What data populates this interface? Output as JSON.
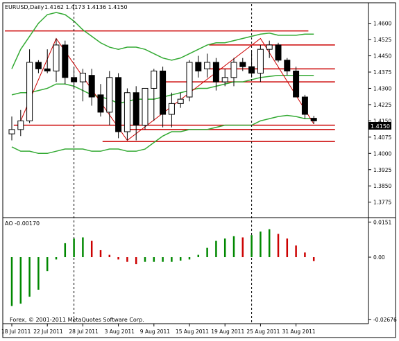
{
  "chart_data": {
    "type": "candlestick",
    "symbol_label": "EURUSD,Daily",
    "ohlc_header": "1.4162 1.4173 1.4136 1.4150",
    "last_price_label": "1.4150",
    "price_axis": {
      "range": [
        1.371,
        1.465
      ],
      "ticks": [
        "1.4600",
        "1.4525",
        "1.4450",
        "1.4375",
        "1.4300",
        "1.4225",
        "1.4150",
        "1.4075",
        "1.4000",
        "1.3925",
        "1.3850",
        "1.3775"
      ]
    },
    "dates": [
      "18 Jul 2011",
      "19 Jul 2011",
      "20 Jul 2011",
      "21 Jul 2011",
      "22 Jul 2011",
      "25 Jul 2011",
      "26 Jul 2011",
      "27 Jul 2011",
      "28 Jul 2011",
      "29 Jul 2011",
      "1 Aug 2011",
      "2 Aug 2011",
      "3 Aug 2011",
      "4 Aug 2011",
      "5 Aug 2011",
      "8 Aug 2011",
      "9 Aug 2011",
      "10 Aug 2011",
      "11 Aug 2011",
      "12 Aug 2011",
      "15 Aug 2011",
      "16 Aug 2011",
      "17 Aug 2011",
      "18 Aug 2011",
      "19 Aug 2011",
      "22 Aug 2011",
      "23 Aug 2011",
      "24 Aug 2011",
      "25 Aug 2011",
      "26 Aug 2011",
      "29 Aug 2011",
      "30 Aug 2011",
      "31 Aug 2011",
      "1 Sep 2011",
      "2 Sep 2011"
    ],
    "x_tick_labels": [
      "18 Jul 2011",
      "22 Jul 2011",
      "28 Jul 2011",
      "3 Aug 2011",
      "9 Aug 2011",
      "15 Aug 2011",
      "19 Aug 2011",
      "25 Aug 2011",
      "31 Aug 2011"
    ],
    "candles": [
      {
        "o": 1.409,
        "h": 1.417,
        "l": 1.406,
        "c": 1.411
      },
      {
        "o": 1.411,
        "h": 1.42,
        "l": 1.408,
        "c": 1.415
      },
      {
        "o": 1.415,
        "h": 1.448,
        "l": 1.414,
        "c": 1.442
      },
      {
        "o": 1.442,
        "h": 1.443,
        "l": 1.437,
        "c": 1.439
      },
      {
        "o": 1.439,
        "h": 1.448,
        "l": 1.437,
        "c": 1.438
      },
      {
        "o": 1.438,
        "h": 1.453,
        "l": 1.433,
        "c": 1.45
      },
      {
        "o": 1.45,
        "h": 1.452,
        "l": 1.432,
        "c": 1.435
      },
      {
        "o": 1.435,
        "h": 1.44,
        "l": 1.43,
        "c": 1.433
      },
      {
        "o": 1.433,
        "h": 1.439,
        "l": 1.424,
        "c": 1.437
      },
      {
        "o": 1.436,
        "h": 1.439,
        "l": 1.422,
        "c": 1.426
      },
      {
        "o": 1.427,
        "h": 1.432,
        "l": 1.417,
        "c": 1.419
      },
      {
        "o": 1.419,
        "h": 1.438,
        "l": 1.413,
        "c": 1.435
      },
      {
        "o": 1.435,
        "h": 1.437,
        "l": 1.407,
        "c": 1.41
      },
      {
        "o": 1.41,
        "h": 1.43,
        "l": 1.406,
        "c": 1.428
      },
      {
        "o": 1.428,
        "h": 1.431,
        "l": 1.406,
        "c": 1.413
      },
      {
        "o": 1.413,
        "h": 1.43,
        "l": 1.411,
        "c": 1.43
      },
      {
        "o": 1.43,
        "h": 1.439,
        "l": 1.415,
        "c": 1.438
      },
      {
        "o": 1.438,
        "h": 1.44,
        "l": 1.412,
        "c": 1.418
      },
      {
        "o": 1.418,
        "h": 1.428,
        "l": 1.412,
        "c": 1.423
      },
      {
        "o": 1.423,
        "h": 1.428,
        "l": 1.421,
        "c": 1.425
      },
      {
        "o": 1.426,
        "h": 1.443,
        "l": 1.424,
        "c": 1.442
      },
      {
        "o": 1.442,
        "h": 1.445,
        "l": 1.435,
        "c": 1.438
      },
      {
        "o": 1.439,
        "h": 1.446,
        "l": 1.435,
        "c": 1.442
      },
      {
        "o": 1.442,
        "h": 1.444,
        "l": 1.429,
        "c": 1.433
      },
      {
        "o": 1.433,
        "h": 1.439,
        "l": 1.431,
        "c": 1.435
      },
      {
        "o": 1.435,
        "h": 1.444,
        "l": 1.431,
        "c": 1.442
      },
      {
        "o": 1.442,
        "h": 1.444,
        "l": 1.438,
        "c": 1.44
      },
      {
        "o": 1.44,
        "h": 1.447,
        "l": 1.435,
        "c": 1.437
      },
      {
        "o": 1.437,
        "h": 1.45,
        "l": 1.433,
        "c": 1.448
      },
      {
        "o": 1.448,
        "h": 1.452,
        "l": 1.444,
        "c": 1.45
      },
      {
        "o": 1.45,
        "h": 1.451,
        "l": 1.442,
        "c": 1.443
      },
      {
        "o": 1.443,
        "h": 1.444,
        "l": 1.436,
        "c": 1.438
      },
      {
        "o": 1.438,
        "h": 1.44,
        "l": 1.426,
        "c": 1.426
      },
      {
        "o": 1.426,
        "h": 1.427,
        "l": 1.416,
        "c": 1.418
      },
      {
        "o": 1.4162,
        "h": 1.4173,
        "l": 1.4136,
        "c": 1.415
      }
    ],
    "bollinger": {
      "upper": [
        1.439,
        1.448,
        1.454,
        1.46,
        1.464,
        1.465,
        1.464,
        1.461,
        1.457,
        1.454,
        1.451,
        1.449,
        1.448,
        1.449,
        1.449,
        1.448,
        1.446,
        1.444,
        1.443,
        1.444,
        1.446,
        1.448,
        1.45,
        1.451,
        1.451,
        1.452,
        1.453,
        1.454,
        1.455,
        1.4555,
        1.4545,
        1.4545,
        1.4545,
        1.455,
        1.455
      ],
      "middle": [
        1.427,
        1.428,
        1.428,
        1.429,
        1.43,
        1.432,
        1.432,
        1.431,
        1.429,
        1.427,
        1.426,
        1.425,
        1.423,
        1.424,
        1.425,
        1.425,
        1.425,
        1.426,
        1.427,
        1.428,
        1.429,
        1.43,
        1.43,
        1.431,
        1.432,
        1.433,
        1.433,
        1.434,
        1.435,
        1.4355,
        1.436,
        1.436,
        1.436,
        1.436,
        1.436
      ],
      "lower": [
        1.403,
        1.401,
        1.401,
        1.4,
        1.4,
        1.401,
        1.402,
        1.402,
        1.402,
        1.401,
        1.401,
        1.402,
        1.402,
        1.401,
        1.401,
        1.402,
        1.405,
        1.408,
        1.41,
        1.41,
        1.411,
        1.411,
        1.411,
        1.412,
        1.413,
        1.413,
        1.413,
        1.413,
        1.415,
        1.416,
        1.417,
        1.4175,
        1.417,
        1.416,
        1.416
      ]
    },
    "zigzag": [
      {
        "i": 1,
        "price": 1.415
      },
      {
        "i": 5,
        "price": 1.453
      },
      {
        "i": 13,
        "price": 1.406
      },
      {
        "i": 28,
        "price": 1.453
      },
      {
        "i": 34,
        "price": 1.4136
      }
    ],
    "levels": [
      {
        "price": 1.4565,
        "from": 0,
        "to": 33
      },
      {
        "price": 1.45,
        "from": 23,
        "to": 36
      },
      {
        "price": 1.439,
        "from": 23,
        "to": 36
      },
      {
        "price": 1.433,
        "from": 18,
        "to": 36
      },
      {
        "price": 1.413,
        "from": 1,
        "to": 36
      },
      {
        "price": 1.411,
        "from": 14,
        "to": 36
      },
      {
        "price": 1.4055,
        "from": 11,
        "to": 36
      }
    ],
    "vertical_markers": [
      7,
      27
    ],
    "ao": {
      "label": "AO -0.00170",
      "range": [
        -0.028,
        0.0158
      ],
      "ticks": [
        "0.0151",
        "0.00",
        "-0.02676"
      ],
      "values": [
        -0.021,
        -0.02,
        -0.017,
        -0.014,
        -0.006,
        -0.001,
        0.006,
        0.008,
        0.0085,
        0.007,
        0.003,
        0.001,
        -0.001,
        -0.002,
        -0.003,
        -0.002,
        -0.002,
        -0.002,
        -0.002,
        -0.0015,
        -0.001,
        0.001,
        0.004,
        0.007,
        0.008,
        0.009,
        0.0085,
        0.0095,
        0.011,
        0.012,
        0.01,
        0.008,
        0.005,
        0.002,
        -0.0017
      ]
    },
    "copyright": "Forex, © 2001-2011 MetaQuotes Software Corp.",
    "colors": {
      "bull": "#ffffff",
      "bear": "#000000",
      "bollinger": "#33aa33",
      "levels": "#cc0000",
      "ao_up": "#008800",
      "ao_down": "#cc0000",
      "last_price_bg": "#000000"
    }
  }
}
